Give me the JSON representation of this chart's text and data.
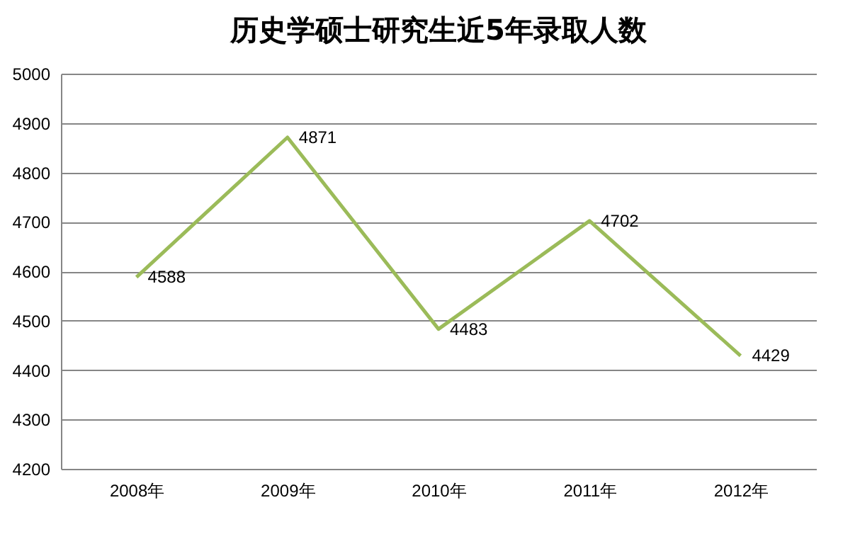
{
  "chart_data": {
    "type": "line",
    "title": "历史学硕士研究生近5年录取人数",
    "categories": [
      "2008年",
      "2009年",
      "2010年",
      "2011年",
      "2012年"
    ],
    "series": [
      {
        "color": "#9bbb59",
        "values": [
          4588,
          4871,
          4483,
          4702,
          4429
        ]
      }
    ],
    "ylim": [
      4200,
      5000
    ],
    "yticks": [
      4200,
      4300,
      4400,
      4500,
      4600,
      4700,
      4800,
      4900,
      5000
    ],
    "grid": "y",
    "data_labels": true,
    "marker": "none",
    "line_style": "solid"
  }
}
